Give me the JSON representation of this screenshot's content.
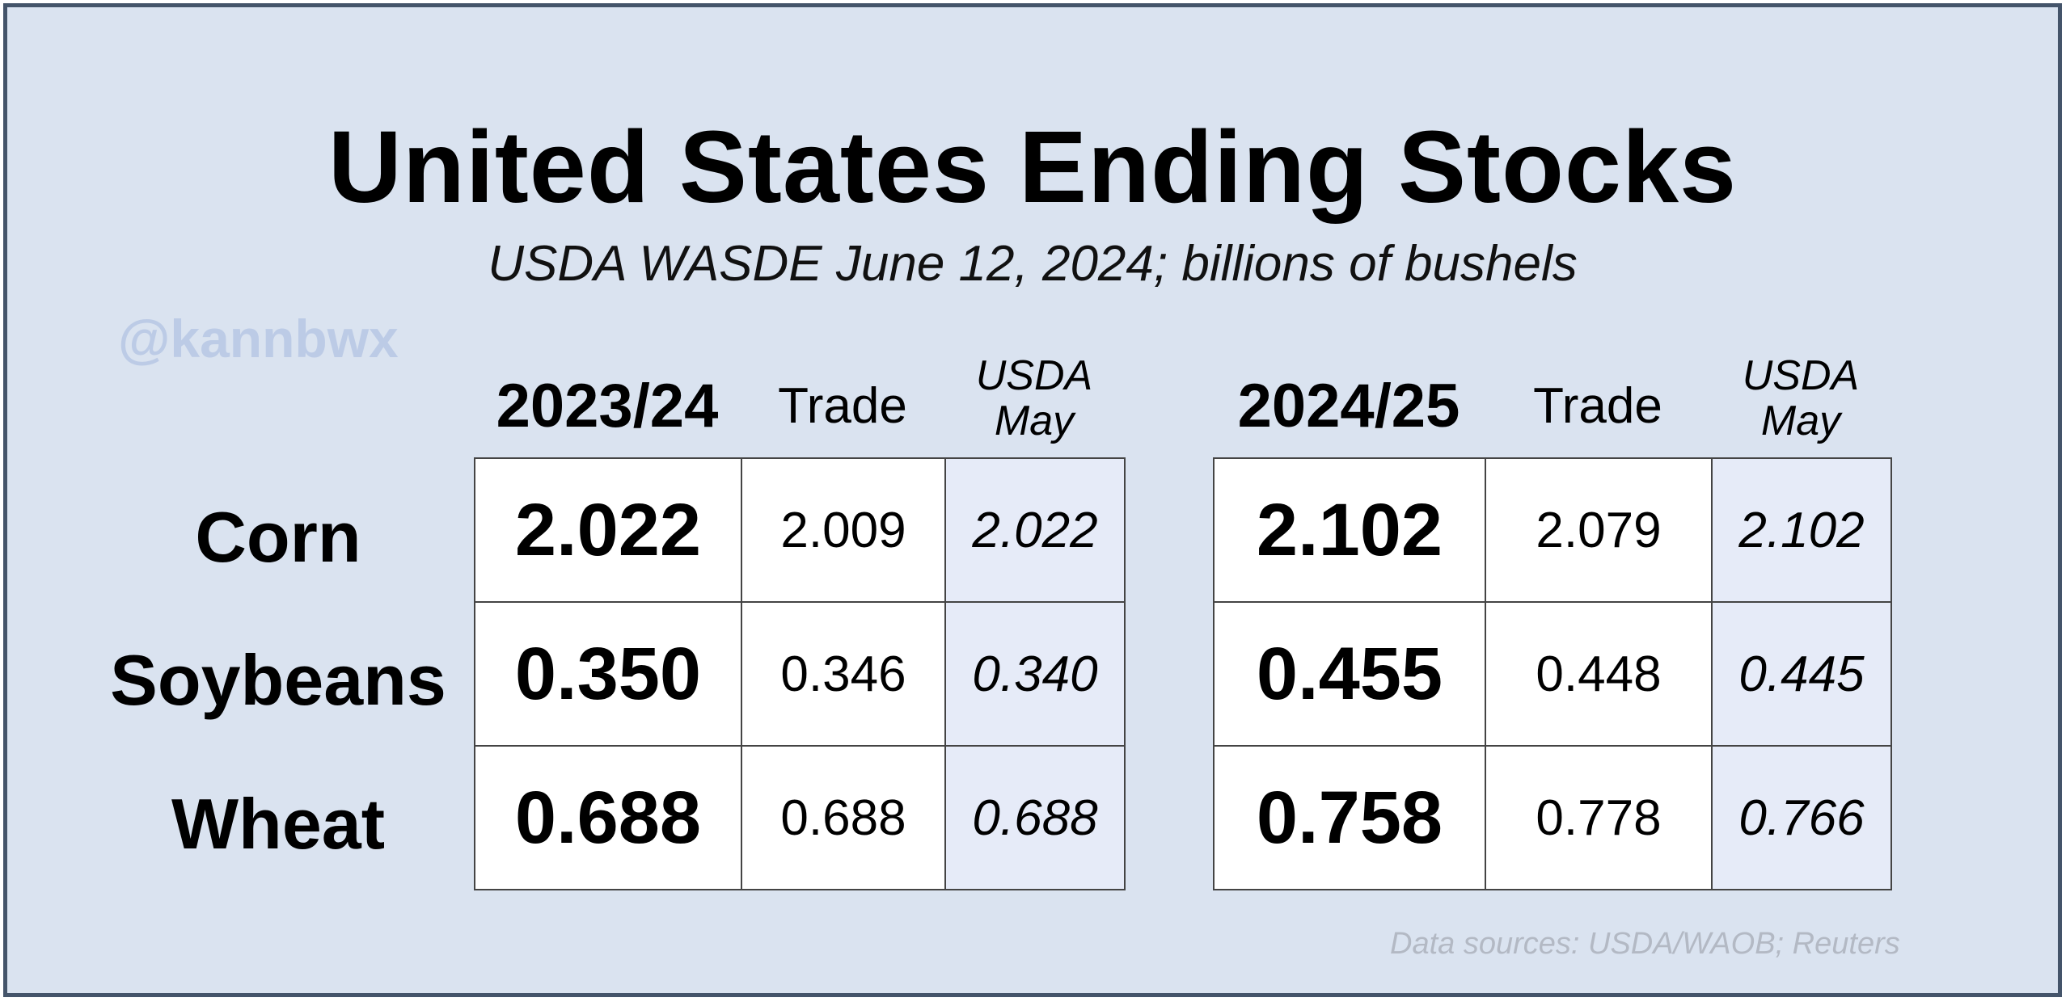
{
  "chart_data": {
    "type": "table",
    "title": "United States Ending Stocks",
    "subtitle": "USDA WASDE June 12, 2024; billions of bushels",
    "watermark": "@kannbwx",
    "source": "Data sources: USDA/WAOB; Reuters",
    "row_labels": [
      "Corn",
      "Soybeans",
      "Wheat"
    ],
    "periods": [
      {
        "name": "2023/24",
        "trade_header": "Trade",
        "usda_header_line1": "USDA",
        "usda_header_line2": "May",
        "rows": [
          {
            "value": "2.022",
            "trade": "2.009",
            "usda_may": "2.022"
          },
          {
            "value": "0.350",
            "trade": "0.346",
            "usda_may": "0.340"
          },
          {
            "value": "0.688",
            "trade": "0.688",
            "usda_may": "0.688"
          }
        ]
      },
      {
        "name": "2024/25",
        "trade_header": "Trade",
        "usda_header_line1": "USDA",
        "usda_header_line2": "May",
        "rows": [
          {
            "value": "2.102",
            "trade": "2.079",
            "usda_may": "2.102"
          },
          {
            "value": "0.455",
            "trade": "0.448",
            "usda_may": "0.445"
          },
          {
            "value": "0.758",
            "trade": "0.778",
            "usda_may": "0.766"
          }
        ]
      }
    ]
  }
}
